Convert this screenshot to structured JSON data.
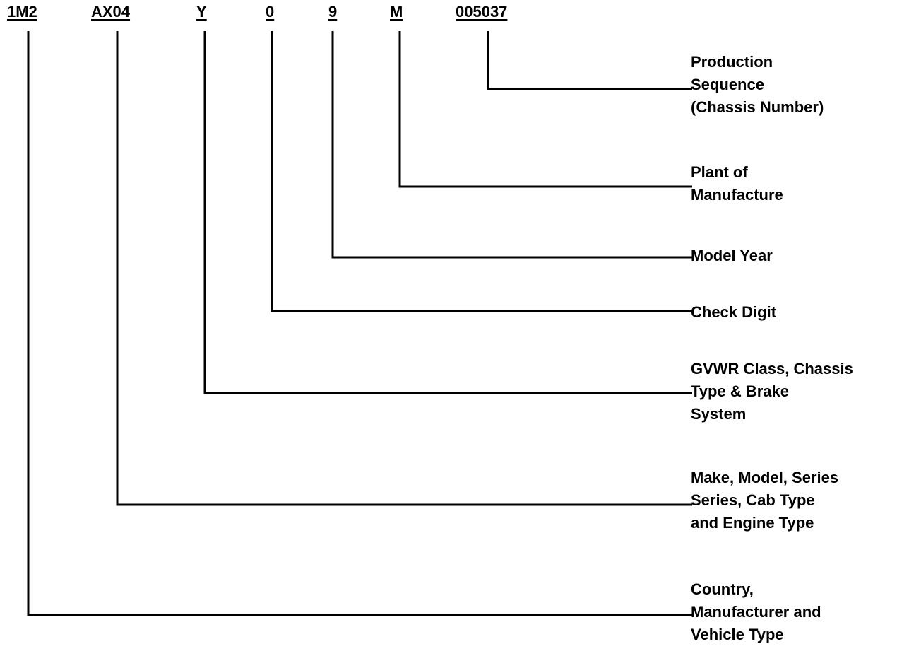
{
  "vin_segments": [
    {
      "id": "seg-1",
      "text": "1M2"
    },
    {
      "id": "seg-2",
      "text": "AX04"
    },
    {
      "id": "seg-3",
      "text": "Y"
    },
    {
      "id": "seg-4",
      "text": "0"
    },
    {
      "id": "seg-5",
      "text": "9"
    },
    {
      "id": "seg-6",
      "text": "M"
    },
    {
      "id": "seg-7",
      "text": "005037"
    }
  ],
  "labels": {
    "production": [
      "Production",
      "Sequence",
      "(Chassis Number)"
    ],
    "plant": [
      "Plant of",
      "Manufacture"
    ],
    "model_year": [
      "Model Year"
    ],
    "check_digit": [
      "Check Digit"
    ],
    "gvwr": [
      "GVWR Class, Chassis",
      "Type & Brake",
      "System"
    ],
    "make_model": [
      "Make, Model, Series",
      "Series, Cab Type",
      "and Engine Type"
    ],
    "country": [
      "Country,",
      "Manufacturer and",
      "Vehicle Type"
    ]
  },
  "line_color": "#000000"
}
